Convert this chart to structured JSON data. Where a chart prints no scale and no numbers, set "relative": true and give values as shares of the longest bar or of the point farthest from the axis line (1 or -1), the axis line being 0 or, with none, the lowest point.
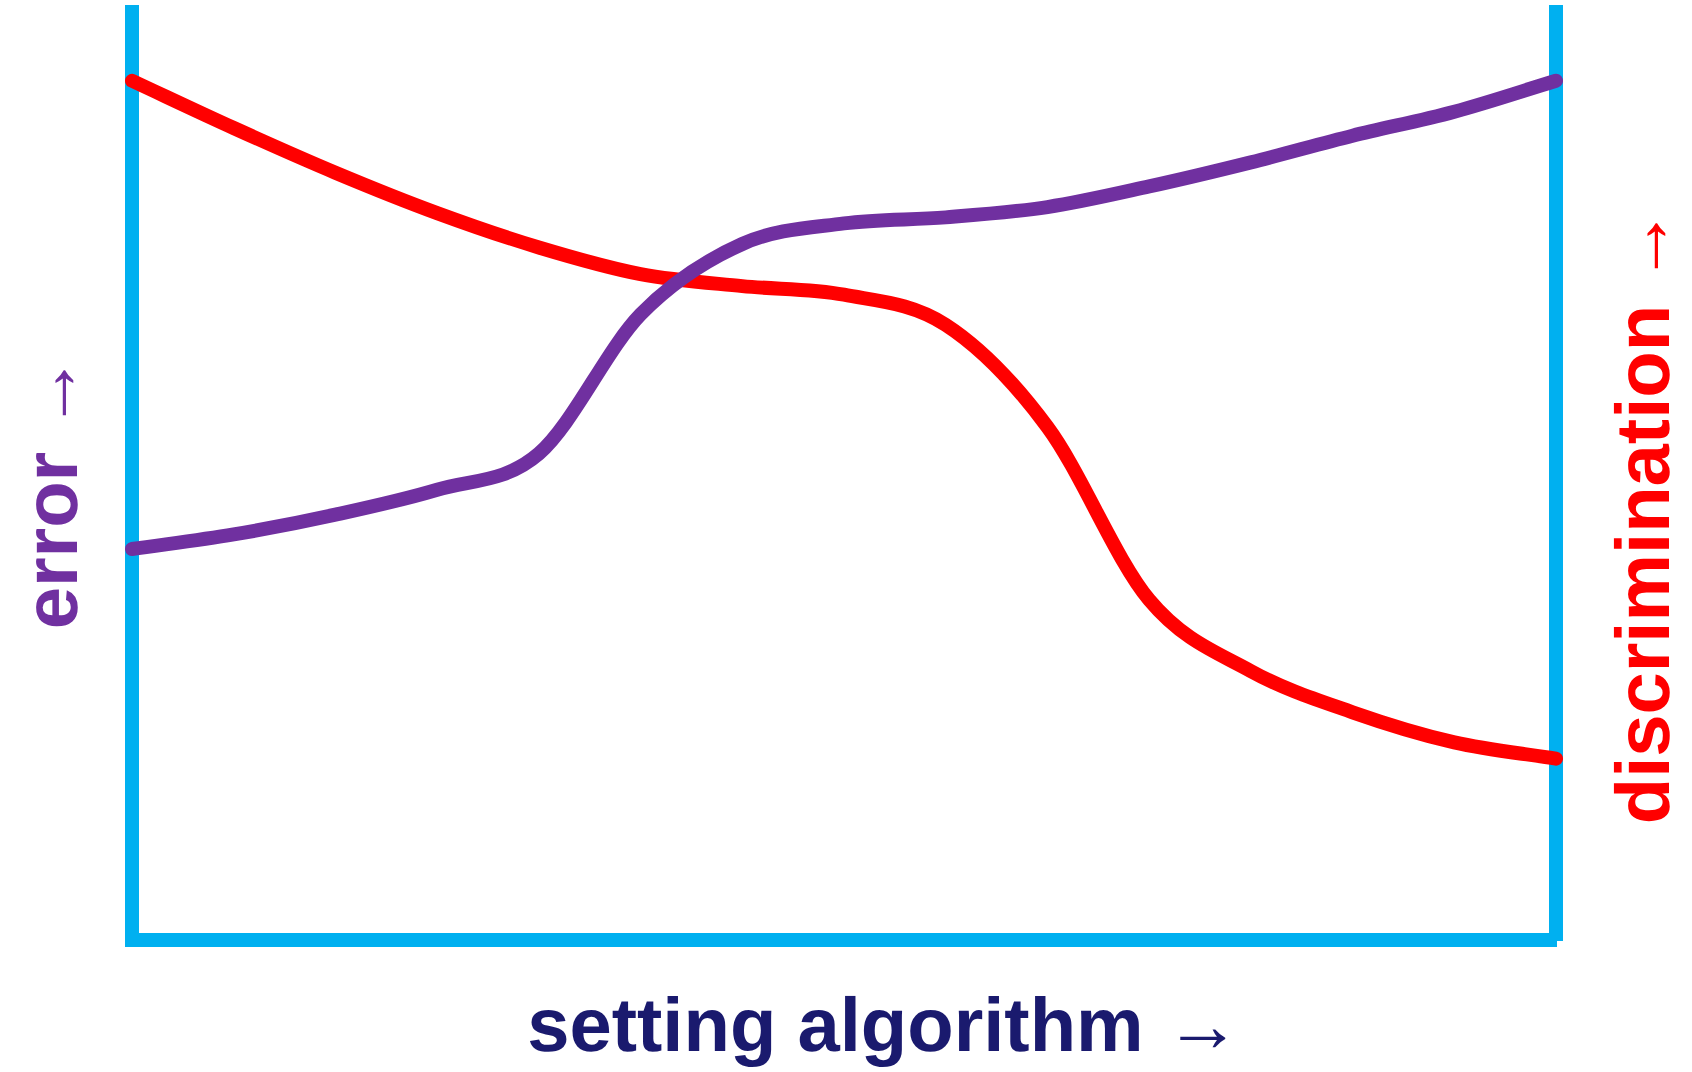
{
  "chart_data": {
    "type": "line",
    "relative": true,
    "xlabel": "setting algorithm →",
    "ylabel": "error →",
    "y2label": "discrimination →",
    "categories": [
      null,
      null,
      null,
      null,
      null,
      null,
      null,
      null,
      null,
      null,
      null,
      null,
      null,
      null,
      null
    ],
    "series": [
      {
        "color": "#7030a0",
        "values": [
          0.455,
          0.472,
          0.495,
          0.524,
          0.566,
          0.728,
          0.81,
          0.834,
          0.841,
          0.853,
          0.877,
          0.905,
          0.936,
          0.964,
          1
        ]
      },
      {
        "color": "#ff0000",
        "values": [
          1,
          0.945,
          0.893,
          0.846,
          0.806,
          0.775,
          0.761,
          0.751,
          0.716,
          0.597,
          0.396,
          0.313,
          0.265,
          0.23,
          0.211
        ]
      }
    ],
    "grid": false,
    "legend": false,
    "marker": "none",
    "line_style": "solid"
  }
}
